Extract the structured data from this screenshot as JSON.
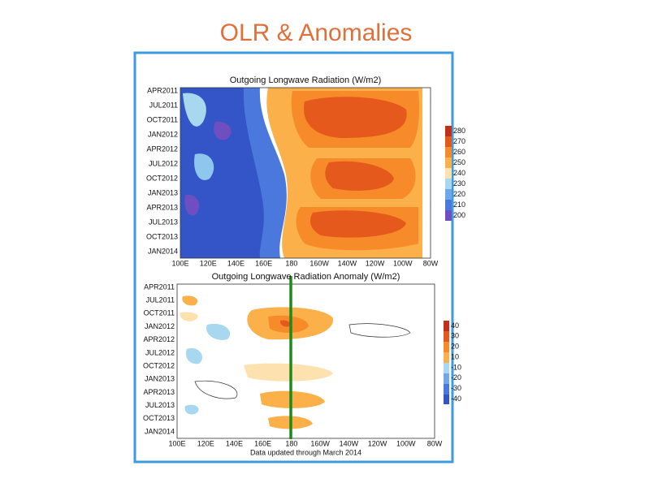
{
  "slide": {
    "title": "OLR & Anomalies",
    "top_panel": {
      "title": "Outgoing Longwave Radiation (W/m2)",
      "y_labels": [
        "APR2011",
        "JUL2011",
        "OCT2011",
        "JAN2012",
        "APR2012",
        "JUL2012",
        "OCT2012",
        "JAN2013",
        "APR2013",
        "JUL2013",
        "OCT2013",
        "JAN2014"
      ],
      "x_labels": [
        "100E",
        "120E",
        "140E",
        "160E",
        "180",
        "160W",
        "140W",
        "120W",
        "100W",
        "80W"
      ],
      "colorbar_labels": [
        "280",
        "270",
        "260",
        "250",
        "240",
        "230",
        "220",
        "210",
        "200"
      ]
    },
    "bottom_panel": {
      "title": "Outgoing Longwave Radiation Anomaly (W/m2)",
      "y_labels": [
        "APR2011",
        "JUL2011",
        "OCT2011",
        "JAN2012",
        "APR2012",
        "JUL2012",
        "OCT2012",
        "JAN2013",
        "APR2013",
        "JUL2013",
        "OCT2013",
        "JAN2014"
      ],
      "x_labels": [
        "100E",
        "120E",
        "140E",
        "160E",
        "180",
        "160W",
        "140W",
        "120W",
        "100W",
        "80W"
      ],
      "colorbar_labels": [
        "40",
        "30",
        "20",
        "10",
        "-10",
        "-20",
        "-30",
        "-40"
      ],
      "footer": "Data updated through March 2014"
    }
  }
}
